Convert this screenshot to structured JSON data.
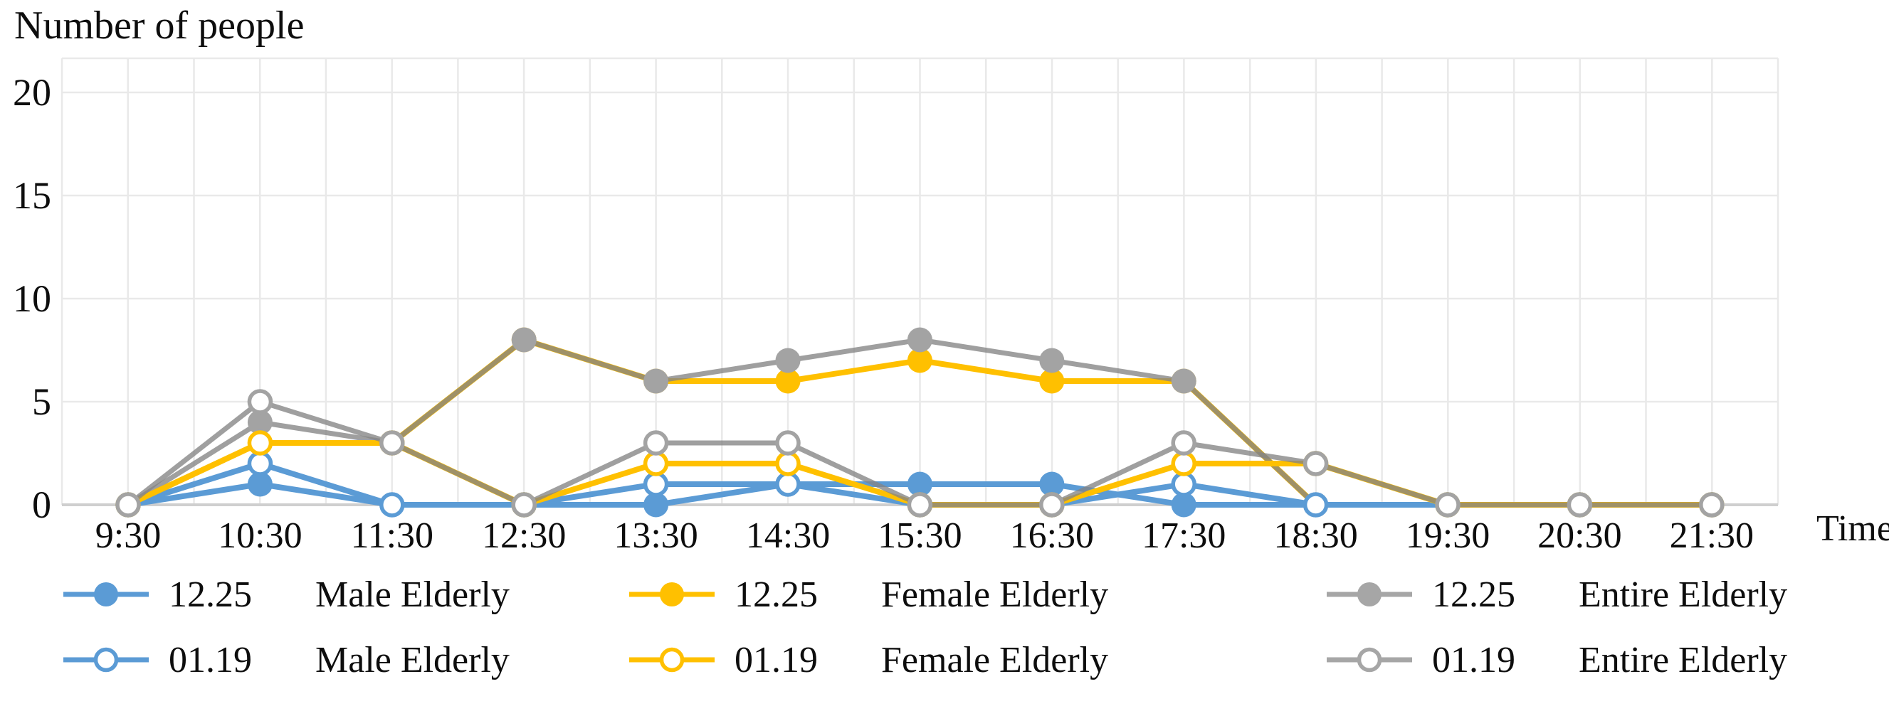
{
  "title": "Number of people",
  "x_axis_label": "Time",
  "colors": {
    "male": "#5B9BD5",
    "female": "#FFC000",
    "entire_marker": "#A3A3A3",
    "entire_line": "rgba(132,132,132,0.78)",
    "entire_legend": "#A6A6A6",
    "grid": "#E9E9E9",
    "axis": "#CFCFCF",
    "text": "#0d0d0d"
  },
  "chart_data": {
    "type": "line",
    "title": "Number of people",
    "xlabel": "Time",
    "ylabel": "Number of people",
    "x": [
      "9:30",
      "10:30",
      "11:30",
      "12:30",
      "13:30",
      "14:30",
      "15:30",
      "16:30",
      "17:30",
      "18:30",
      "19:30",
      "20:30",
      "21:30"
    ],
    "yticks": [
      0,
      5,
      10,
      15,
      20
    ],
    "ylim": [
      0,
      21.5
    ],
    "grid": true,
    "legend_position": "bottom",
    "series": [
      {
        "name": "12.25 Male Elderly",
        "date": "12.25",
        "group": "Male Elderly",
        "marker": "filled",
        "color_key": "male",
        "values": [
          0,
          1,
          0,
          0,
          0,
          1,
          1,
          1,
          0,
          0,
          0,
          0,
          0
        ]
      },
      {
        "name": "12.25 Female Elderly",
        "date": "12.25",
        "group": "Female Elderly",
        "marker": "filled",
        "color_key": "female",
        "values": [
          0,
          3,
          3,
          8,
          6,
          6,
          7,
          6,
          6,
          0,
          0,
          0,
          0
        ]
      },
      {
        "name": "12.25 Entire Elderly",
        "date": "12.25",
        "group": "Entire Elderly",
        "marker": "filled",
        "color_key": "entire",
        "values": [
          0,
          4,
          3,
          8,
          6,
          7,
          8,
          7,
          6,
          0,
          0,
          0,
          0
        ]
      },
      {
        "name": "01.19 Male Elderly",
        "date": "01.19",
        "group": "Male Elderly",
        "marker": "open",
        "color_key": "male",
        "values": [
          0,
          2,
          0,
          0,
          1,
          1,
          0,
          0,
          1,
          0,
          0,
          0,
          0
        ]
      },
      {
        "name": "01.19 Female Elderly",
        "date": "01.19",
        "group": "Female Elderly",
        "marker": "open",
        "color_key": "female",
        "values": [
          0,
          3,
          3,
          0,
          2,
          2,
          0,
          0,
          2,
          2,
          0,
          0,
          0
        ]
      },
      {
        "name": "01.19 Entire Elderly",
        "date": "01.19",
        "group": "Entire Elderly",
        "marker": "open",
        "color_key": "entire",
        "values": [
          0,
          5,
          3,
          0,
          3,
          3,
          0,
          0,
          3,
          2,
          0,
          0,
          0
        ]
      }
    ],
    "legend_rows": [
      {
        "date": "12.25",
        "entries": [
          "Male Elderly",
          "Female Elderly",
          "Entire Elderly"
        ]
      },
      {
        "date": "01.19",
        "entries": [
          "Male Elderly",
          "Female Elderly",
          "Entire Elderly"
        ]
      }
    ]
  }
}
